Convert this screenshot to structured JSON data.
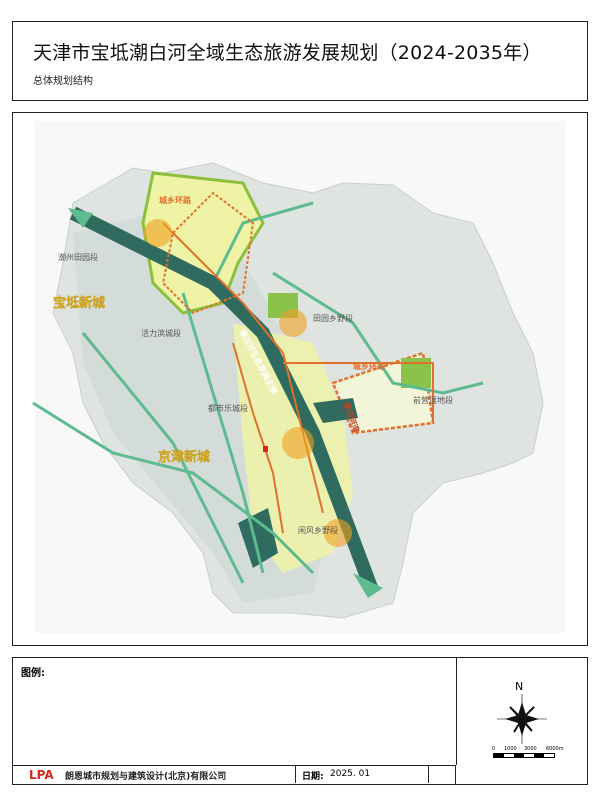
{
  "header": {
    "title": "天津市宝坻潮白河全域生态旅游发展规划（2024-2035年）",
    "subtitle": "总体规划结构"
  },
  "map": {
    "labels": {
      "axis": "潮白河生态发展主轴",
      "ring_north": "城乡环路",
      "ring_east": "城乡环路",
      "new_city_1": "宝坻新城",
      "new_city_2": "京津新城",
      "seg_nw": "潮州田园段",
      "seg_huoli": "活力滨城段",
      "seg_tianyuan": "田园乡野段",
      "seg_east": "前营湿地段",
      "seg_dushi": "都市乐城段",
      "seg_south": "闲风乡野段",
      "seg_vertical": "潮白河湾"
    },
    "colors": {
      "river_axis": "#2f6b5e",
      "green_corridor": "#5dbb8f",
      "ring_road": "#e0702a",
      "new_city_text": "#f0d040",
      "base_land": "#dde3df",
      "urban_yellow": "#eef2a0",
      "node_orange": "#f0a020"
    }
  },
  "footer": {
    "legend_title": "图例:",
    "logo": "LPA",
    "company": "朗恩城市规划与建筑设计(北京)有限公司",
    "date_label": "日期:",
    "date_value": "2025. 01",
    "north": "N",
    "scale": [
      "0",
      "1000",
      "3000",
      "6000m"
    ]
  }
}
